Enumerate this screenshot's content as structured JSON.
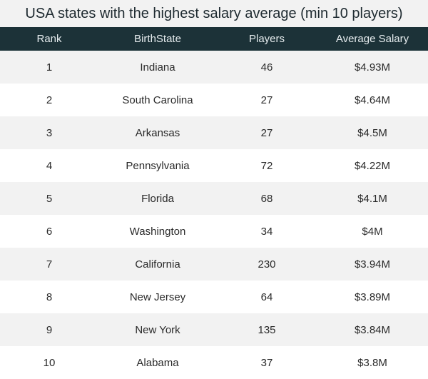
{
  "title": "USA states with the highest salary average (min 10 players)",
  "columns": [
    "Rank",
    "BirthState",
    "Players",
    "Average Salary"
  ],
  "rows": [
    [
      "1",
      "Indiana",
      "46",
      "$4.93M"
    ],
    [
      "2",
      "South Carolina",
      "27",
      "$4.64M"
    ],
    [
      "3",
      "Arkansas",
      "27",
      "$4.5M"
    ],
    [
      "4",
      "Pennsylvania",
      "72",
      "$4.22M"
    ],
    [
      "5",
      "Florida",
      "68",
      "$4.1M"
    ],
    [
      "6",
      "Washington",
      "34",
      "$4M"
    ],
    [
      "7",
      "California",
      "230",
      "$3.94M"
    ],
    [
      "8",
      "New Jersey",
      "64",
      "$3.89M"
    ],
    [
      "9",
      "New York",
      "135",
      "$3.84M"
    ],
    [
      "10",
      "Alabama",
      "37",
      "$3.8M"
    ]
  ],
  "colors": {
    "header_bg": "#1c3238",
    "row_alt": "#f2f2f2",
    "row": "#ffffff"
  }
}
